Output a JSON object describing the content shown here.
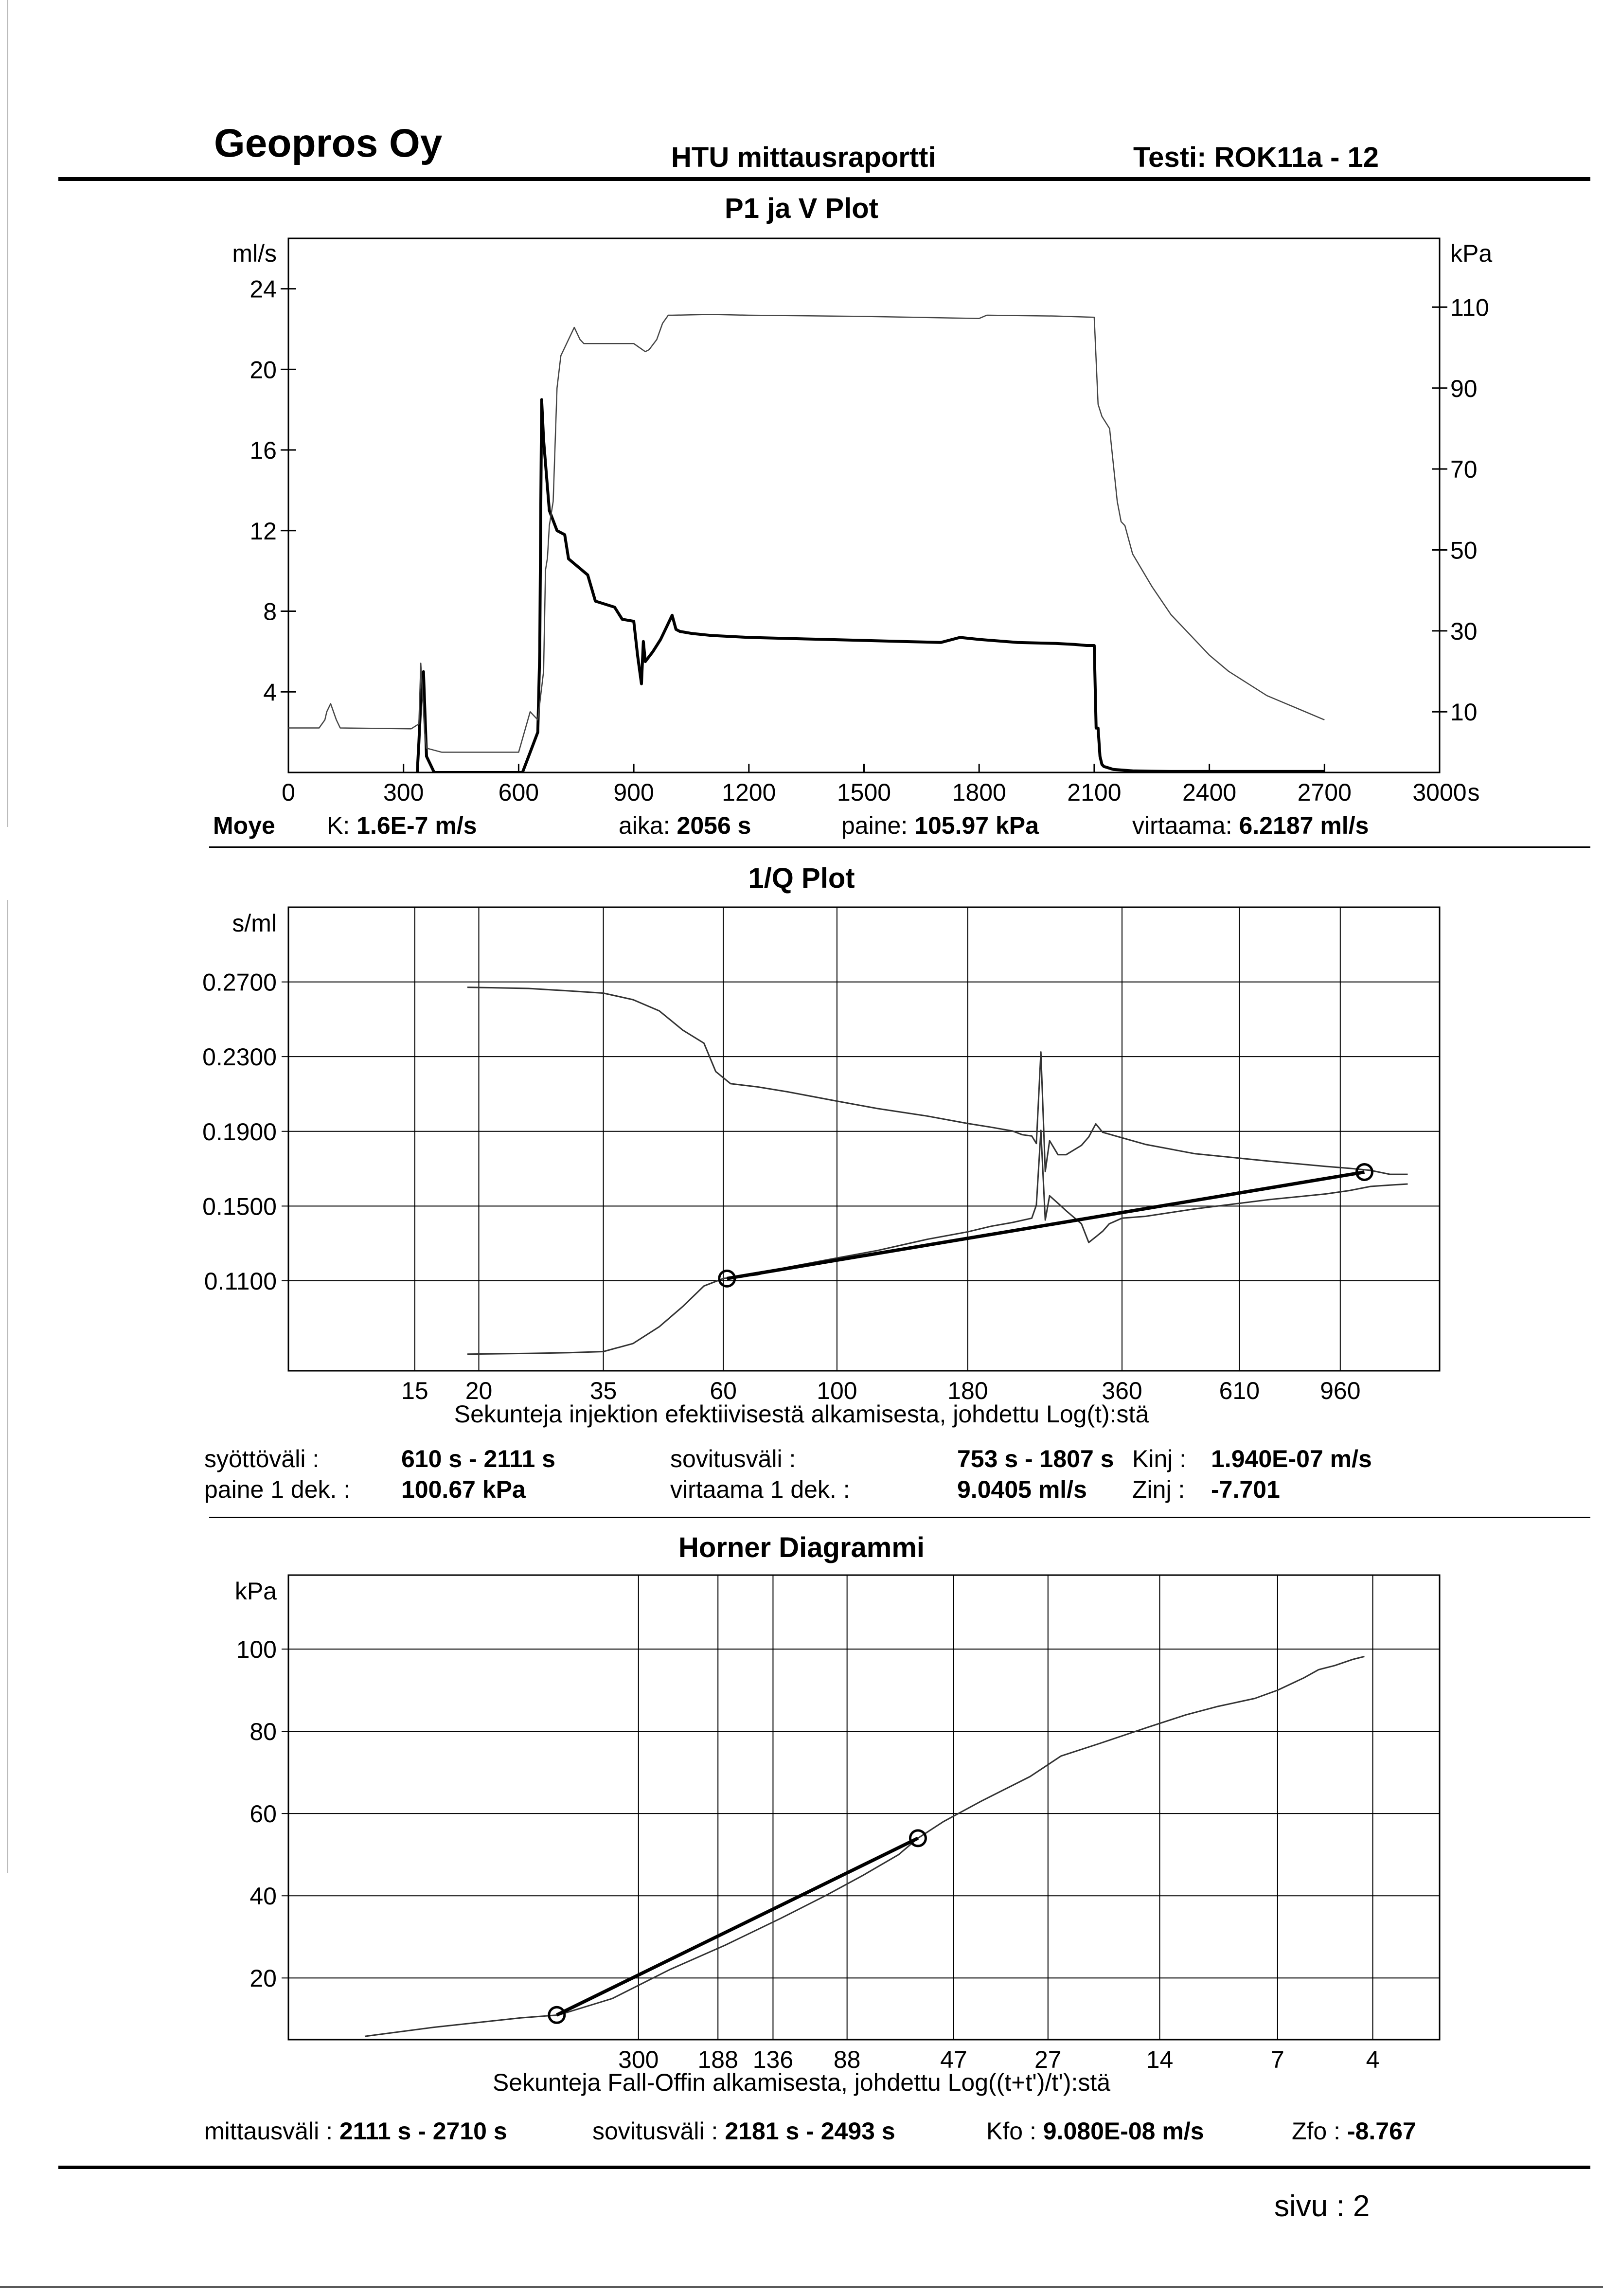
{
  "header": {
    "company": "Geopros Oy",
    "report": "HTU mittausraportti",
    "test": "Testi: ROK11a - 12"
  },
  "plot1": {
    "title": "P1 ja V Plot",
    "left_unit": "ml/s",
    "right_unit": "kPa",
    "x_unit": "s",
    "summary": {
      "location": "Moye",
      "k_label": "K:",
      "k_value": "1.6E-7 m/s",
      "aika_label": "aika:",
      "aika_value": "2056 s",
      "paine_label": "paine:",
      "paine_value": "105.97 kPa",
      "virtaama_label": "virtaama:",
      "virtaama_value": "6.2187 ml/s"
    }
  },
  "plot2": {
    "title": "1/Q Plot",
    "y_unit": "s/ml",
    "xlabel": "Sekunteja injektion efektiivisestä alkamisesta, johdettu Log(t):stä",
    "summary": {
      "syotto_label": "syöttöväli :",
      "syotto_value": "610 s -  2111 s",
      "paine_label": "paine 1 dek. :",
      "paine_value": "100.67 kPa",
      "sovitus_label": "sovitusväli :",
      "sovitus_value": "753 s  -  1807 s",
      "virtaama_label": "virtaama 1 dek. :",
      "virtaama_value": "9.0405 ml/s",
      "kinj_label": "Kinj :",
      "kinj_value": "1.940E-07 m/s",
      "zinj_label": "Zinj :",
      "zinj_value": "-7.701"
    }
  },
  "plot3": {
    "title": "Horner Diagrammi",
    "y_unit": "kPa",
    "xlabel": "Sekunteja Fall-Offin alkamisesta, johdettu Log((t+t')/t'):stä",
    "summary": {
      "mittaus_label": "mittausväli :",
      "mittaus_value": "2111 s -  2710 s",
      "sovitus_label": "sovitusväli :",
      "sovitus_value": "2181 s -  2493 s",
      "kfo_label": "Kfo :",
      "kfo_value": "9.080E-08 m/s",
      "zfo_label": "Zfo :",
      "zfo_value": "-8.767"
    }
  },
  "footer": {
    "page": "sivu :  2"
  },
  "chart_data": [
    {
      "type": "line",
      "title": "P1 ja V Plot",
      "xlabel": "s",
      "ylabel": "ml/s",
      "ylabel_right": "kPa",
      "xlim": [
        0,
        3000
      ],
      "ylim": [
        0,
        26.5
      ],
      "ylim_right": [
        -5,
        127
      ],
      "x_ticks": [
        0,
        300,
        600,
        900,
        1200,
        1500,
        1800,
        2100,
        2400,
        2700,
        3000
      ],
      "x_tick_labels": [
        "0",
        "300",
        "600",
        "900",
        "1200",
        "1500",
        "1800",
        "2100",
        "2400",
        "2700",
        "3000"
      ],
      "y_ticks": [
        4,
        8,
        12,
        16,
        20,
        24
      ],
      "y_tick_labels": [
        "4",
        "8",
        "12",
        "16",
        "20",
        "24"
      ],
      "y_right_ticks": [
        10,
        30,
        50,
        70,
        90,
        110
      ],
      "y_right_tick_labels": [
        "10",
        "30",
        "50",
        "70",
        "90",
        "110"
      ],
      "grid": false,
      "series": [
        {
          "axis": "left",
          "x": [
            0,
            330,
            340,
            345,
            352,
            360,
            380,
            600,
            610,
            630,
            650,
            655,
            658,
            660,
            665,
            680,
            700,
            720,
            730,
            780,
            800,
            850,
            870,
            900,
            910,
            920,
            925,
            930,
            950,
            960,
            970,
            980,
            990,
            1000,
            1010,
            1020,
            1050,
            1100,
            1200,
            1300,
            1400,
            1500,
            1600,
            1700,
            1750,
            1800,
            1900,
            2000,
            2050,
            2080,
            2100,
            2105,
            2110,
            2115,
            2120,
            2125,
            2150,
            2200,
            2250,
            2300,
            2400,
            2500,
            2600,
            2700
          ],
          "y": [
            -2,
            -2,
            1.5,
            3.5,
            5,
            0.8,
            0,
            0,
            0,
            1,
            2,
            6,
            14,
            18.5,
            16.5,
            13,
            12,
            11.8,
            10.6,
            9.8,
            8.5,
            8.2,
            7.6,
            7.5,
            5.8,
            4.4,
            6.5,
            5.5,
            6.0,
            6.3,
            6.6,
            7.0,
            7.4,
            7.8,
            7.1,
            7.0,
            6.9,
            6.8,
            6.7,
            6.65,
            6.6,
            6.55,
            6.5,
            6.45,
            6.7,
            6.6,
            6.45,
            6.4,
            6.35,
            6.3,
            6.3,
            2.2,
            2.2,
            0.8,
            0.4,
            0.3,
            0.15,
            0.08,
            0.06,
            0.05,
            0.05,
            0.05,
            0.05,
            0.05
          ]
        },
        {
          "axis": "right",
          "x": [
            0,
            80,
            95,
            100,
            110,
            125,
            135,
            320,
            340,
            345,
            355,
            360,
            400,
            600,
            630,
            650,
            665,
            670,
            675,
            680,
            690,
            700,
            710,
            720,
            745,
            760,
            770,
            780,
            800,
            850,
            900,
            930,
            940,
            960,
            975,
            990,
            1000,
            1100,
            1200,
            1500,
            1800,
            1820,
            2000,
            2100,
            2110,
            2120,
            2140,
            2160,
            2170,
            2180,
            2200,
            2250,
            2300,
            2350,
            2400,
            2450,
            2500,
            2550,
            2600,
            2650,
            2700
          ],
          "y": [
            6,
            6,
            8,
            10,
            12,
            8,
            6,
            5.8,
            7,
            22,
            5,
            1,
            0,
            0,
            10,
            8,
            20,
            45,
            48,
            56,
            62,
            90,
            98,
            100,
            105,
            102,
            101,
            101,
            101,
            101,
            101,
            99,
            99.5,
            102,
            106,
            108,
            108,
            108.2,
            108,
            107.7,
            107.2,
            108,
            107.8,
            107.5,
            86,
            83,
            80,
            62,
            57,
            56,
            49,
            41,
            34,
            29,
            24,
            20,
            17,
            14,
            12,
            10,
            8
          ]
        }
      ]
    },
    {
      "type": "line",
      "title": "1/Q Plot",
      "xlabel": "Sekunteja injektion efektiivisestä alkamisesta, johdettu Log(t):stä",
      "ylabel": "s/ml",
      "x_scale": "log",
      "xlim": [
        8.5,
        1500
      ],
      "ylim": [
        0.0618,
        0.31
      ],
      "x_ticks": [
        15,
        20,
        35,
        60,
        100,
        180,
        360,
        610,
        960
      ],
      "x_tick_labels": [
        "15",
        "20",
        "35",
        "60",
        "100",
        "180",
        "360",
        "610",
        "960"
      ],
      "y_ticks": [
        0.11,
        0.15,
        0.19,
        0.23,
        0.27
      ],
      "y_tick_labels": [
        "0.1100",
        "0.1500",
        "0.1900",
        "0.2300",
        "0.2700"
      ],
      "grid": true,
      "series": [
        {
          "x": [
            19,
            25,
            30,
            35,
            40,
            45,
            50,
            55,
            58,
            62,
            70,
            80,
            100,
            120,
            150,
            180,
            200,
            220,
            230,
            240,
            245,
            250,
            255,
            260,
            270,
            280,
            300,
            310,
            320,
            330,
            400,
            500,
            700,
            900,
            1000,
            1100,
            1200,
            1300
          ],
          "y": [
            0.26712,
            0.2665,
            0.2652,
            0.264,
            0.2605,
            0.2545,
            0.2442,
            0.2372,
            0.222,
            0.2155,
            0.2138,
            0.2112,
            0.2062,
            0.2022,
            0.1982,
            0.1942,
            0.1922,
            0.1902,
            0.1882,
            0.1875,
            0.1835,
            0.2325,
            0.1685,
            0.185,
            0.1775,
            0.1775,
            0.1825,
            0.187,
            0.194,
            0.1895,
            0.183,
            0.178,
            0.174,
            0.1712,
            0.1702,
            0.1691,
            0.167,
            0.167
          ]
        },
        {
          "x": [
            19,
            25,
            30,
            35,
            40,
            45,
            50,
            55,
            60,
            70,
            80,
            100,
            120,
            150,
            180,
            200,
            220,
            240,
            245,
            250,
            255,
            260,
            270,
            280,
            300,
            310,
            320,
            330,
            340,
            360,
            400,
            500,
            700,
            900,
            1000,
            1100,
            1200,
            1300
          ],
          "y": [
            0.0707,
            0.0711,
            0.0715,
            0.0721,
            0.0764,
            0.0854,
            0.0962,
            0.1072,
            0.1112,
            0.1132,
            0.1172,
            0.1222,
            0.1262,
            0.1322,
            0.1362,
            0.1392,
            0.1412,
            0.1435,
            0.1505,
            0.1905,
            0.1425,
            0.1555,
            0.1515,
            0.1475,
            0.1405,
            0.1305,
            0.1335,
            0.1365,
            0.1405,
            0.1435,
            0.1445,
            0.1485,
            0.1535,
            0.1565,
            0.1583,
            0.1605,
            0.1612,
            0.1618
          ]
        },
        {
          "name": "fit",
          "x": [
            61,
            1070
          ],
          "y": [
            0.1112,
            0.1682
          ]
        }
      ],
      "fit_markers": [
        {
          "x": 61,
          "y": 0.1112
        },
        {
          "x": 1070,
          "y": 0.1682
        }
      ]
    },
    {
      "type": "line",
      "title": "Horner Diagrammi",
      "xlabel": "Sekunteja Fall-Offin alkamisesta, johdettu Log((t+t')/t'):stä",
      "ylabel": "kPa",
      "x_scale": "log",
      "x_reversed": true,
      "xlim": [
        2.7,
        2350
      ],
      "ylim": [
        5,
        118
      ],
      "x_ticks": [
        300,
        188,
        136,
        88,
        47,
        27,
        14,
        7,
        4
      ],
      "x_tick_labels": [
        "300",
        "188",
        "136",
        "88",
        "47",
        "27",
        "14",
        "7",
        "4"
      ],
      "y_ticks": [
        20,
        40,
        60,
        80,
        100
      ],
      "y_tick_labels": [
        "20",
        "40",
        "60",
        "80",
        "100"
      ],
      "grid": true,
      "series": [
        {
          "x": [
            1500,
            1000,
            600,
            480,
            350,
            250,
            180,
            130,
            100,
            80,
            65,
            58,
            50,
            40,
            30,
            25,
            20,
            15,
            12,
            10,
            8,
            7,
            6,
            5.5,
            5,
            4.5,
            4.2
          ],
          "y": [
            5.8,
            8,
            10.3,
            11,
            15,
            22,
            28,
            34.5,
            40,
            45,
            50,
            54,
            58,
            63,
            69,
            74,
            77,
            81,
            84,
            86,
            88,
            90,
            93,
            95,
            96,
            97.5,
            98.2
          ]
        },
        {
          "name": "fit",
          "x": [
            485,
            58
          ],
          "y": [
            11,
            54
          ]
        }
      ],
      "fit_markers": [
        {
          "x": 485,
          "y": 11
        },
        {
          "x": 58,
          "y": 54
        }
      ]
    }
  ]
}
